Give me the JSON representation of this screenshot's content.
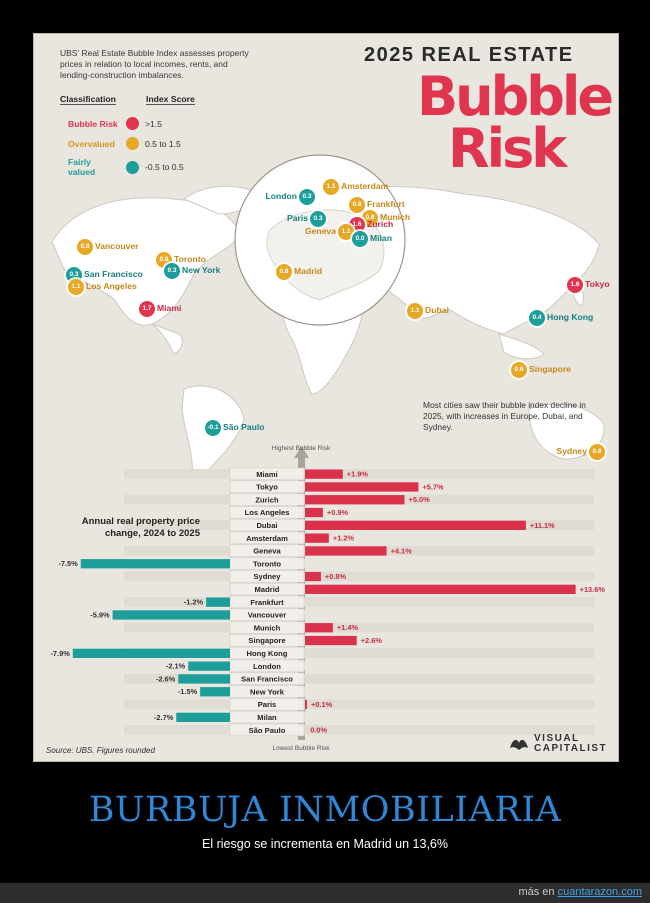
{
  "header": {
    "intro": "UBS' Real Estate Bubble Index assesses property prices in relation to local incomes, rents, and lending-construction imbalances.",
    "kicker": "2025 REAL ESTATE",
    "title_line1": "Bubble",
    "title_line2": "Risk"
  },
  "legend": {
    "col1": "Classification",
    "col2": "Index Score",
    "items": [
      {
        "label": "Bubble Risk",
        "range": ">1.5",
        "color": "#e0354f"
      },
      {
        "label": "Overvalued",
        "range": "0.5 to 1.5",
        "color": "#e7a825"
      },
      {
        "label": "Fairly valued",
        "range": "-0.5 to 0.5",
        "color": "#1e9e9b"
      }
    ]
  },
  "map": {
    "cities": [
      {
        "name": "London",
        "score": "0.3",
        "cls": "fair"
      },
      {
        "name": "Amsterdam",
        "score": "1.1",
        "cls": "over"
      },
      {
        "name": "Frankfurt",
        "score": "0.8",
        "cls": "over"
      },
      {
        "name": "Paris",
        "score": "0.3",
        "cls": "fair"
      },
      {
        "name": "Munich",
        "score": "0.8",
        "cls": "over"
      },
      {
        "name": "Zurich",
        "score": "1.6",
        "cls": "risk"
      },
      {
        "name": "Geneva",
        "score": "1.1",
        "cls": "over"
      },
      {
        "name": "Milan",
        "score": "0.0",
        "cls": "fair"
      },
      {
        "name": "Madrid",
        "score": "0.8",
        "cls": "over"
      },
      {
        "name": "Vancouver",
        "score": "0.8",
        "cls": "over"
      },
      {
        "name": "Toronto",
        "score": "0.8",
        "cls": "over"
      },
      {
        "name": "New York",
        "score": "0.3",
        "cls": "fair"
      },
      {
        "name": "San Francisco",
        "score": "0.3",
        "cls": "fair"
      },
      {
        "name": "Los Angeles",
        "score": "1.1",
        "cls": "over"
      },
      {
        "name": "Miami",
        "score": "1.7",
        "cls": "risk"
      },
      {
        "name": "Tokyo",
        "score": "1.6",
        "cls": "risk"
      },
      {
        "name": "Dubai",
        "score": "1.1",
        "cls": "over"
      },
      {
        "name": "Hong Kong",
        "score": "0.4",
        "cls": "fair"
      },
      {
        "name": "Singapore",
        "score": "0.6",
        "cls": "over"
      },
      {
        "name": "São Paulo",
        "score": "-0.1",
        "cls": "fair"
      },
      {
        "name": "Sydney",
        "score": "0.8",
        "cls": "over"
      }
    ],
    "note": "Most cities saw their bubble index decline in 2025, with increases in Europe, Dubai, and Sydney."
  },
  "chart_data": {
    "type": "bar",
    "title": "Annual real property price change, 2024 to 2025",
    "top_label": "Highest Bubble Risk",
    "bottom_label": "Lowest Bubble Risk",
    "categories": [
      "Miami",
      "Tokyo",
      "Zurich",
      "Los Angeles",
      "Dubai",
      "Amsterdam",
      "Geneva",
      "Toronto",
      "Sydney",
      "Madrid",
      "Frankfurt",
      "Vancouver",
      "Munich",
      "Singapore",
      "Hong Kong",
      "London",
      "San Francisco",
      "New York",
      "Paris",
      "Milan",
      "São Paulo"
    ],
    "values": [
      1.9,
      5.7,
      5.0,
      0.9,
      11.1,
      1.2,
      4.1,
      -7.5,
      0.8,
      13.6,
      -1.2,
      -5.9,
      1.4,
      2.6,
      -7.9,
      -2.1,
      -2.6,
      -1.5,
      0.1,
      -2.7,
      0.0
    ],
    "labels": [
      "+1.9%",
      "+5.7%",
      "+5.0%",
      "+0.9%",
      "+11.1%",
      "+1.2%",
      "+4.1%",
      "-7.5%",
      "+0.8%",
      "+13.6%",
      "-1.2%",
      "-5.9%",
      "+1.4%",
      "+2.6%",
      "-7.9%",
      "-2.1%",
      "-2.6%",
      "-1.5%",
      "+0.1%",
      "-2.7%",
      "0.0%"
    ],
    "unit": "%",
    "colors": {
      "positive": "#d9324a",
      "negative": "#1e9e9b"
    }
  },
  "footer_poster": {
    "source": "Source: UBS. Figures rounded",
    "brand_line1": "VISUAL",
    "brand_line2": "CAPITALIST"
  },
  "caption": {
    "title": "BURBUJA INMOBILIARIA",
    "subtitle": "El riesgo se incrementa en Madrid un 13,6%"
  },
  "site_footer": {
    "prefix": "más en",
    "link": "cuantarazon.com"
  }
}
